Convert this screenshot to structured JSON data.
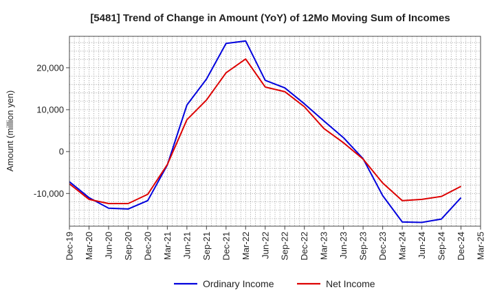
{
  "chart_data": {
    "type": "line",
    "title": "[5481]  Trend of Change in Amount (YoY) of 12Mo Moving Sum of Incomes",
    "xlabel": "",
    "ylabel": "Amount (million yen)",
    "ylim": [
      -17800,
      27500
    ],
    "y_ticks": [
      -10000,
      0,
      10000,
      20000
    ],
    "y_tick_labels": [
      "-10,000",
      "0",
      "10,000",
      "20,000"
    ],
    "x_tick_labels": [
      "Dec-19",
      "Mar-20",
      "Jun-20",
      "Sep-20",
      "Dec-20",
      "Mar-21",
      "Jun-21",
      "Sep-21",
      "Dec-21",
      "Mar-22",
      "Jun-22",
      "Sep-22",
      "Dec-22",
      "Mar-23",
      "Jun-23",
      "Sep-23",
      "Dec-23",
      "Mar-24",
      "Jun-24",
      "Sep-24",
      "Dec-24",
      "Mar-25"
    ],
    "grid": true,
    "legend_position": "bottom",
    "series": [
      {
        "name": "Ordinary Income",
        "color": "#0000dd",
        "values": [
          -7200,
          -11000,
          -13500,
          -13700,
          -11700,
          -3200,
          11100,
          17300,
          25800,
          26400,
          17000,
          15200,
          11400,
          7300,
          3300,
          -1700,
          -10500,
          -16800,
          -16900,
          -16100,
          -11000
        ]
      },
      {
        "name": "Net Income",
        "color": "#dd0000",
        "values": [
          -7700,
          -11400,
          -12400,
          -12400,
          -10200,
          -3100,
          7600,
          12300,
          18800,
          22100,
          15400,
          14300,
          10700,
          5500,
          2100,
          -1800,
          -7500,
          -11700,
          -11400,
          -10700,
          -8300
        ]
      }
    ]
  }
}
